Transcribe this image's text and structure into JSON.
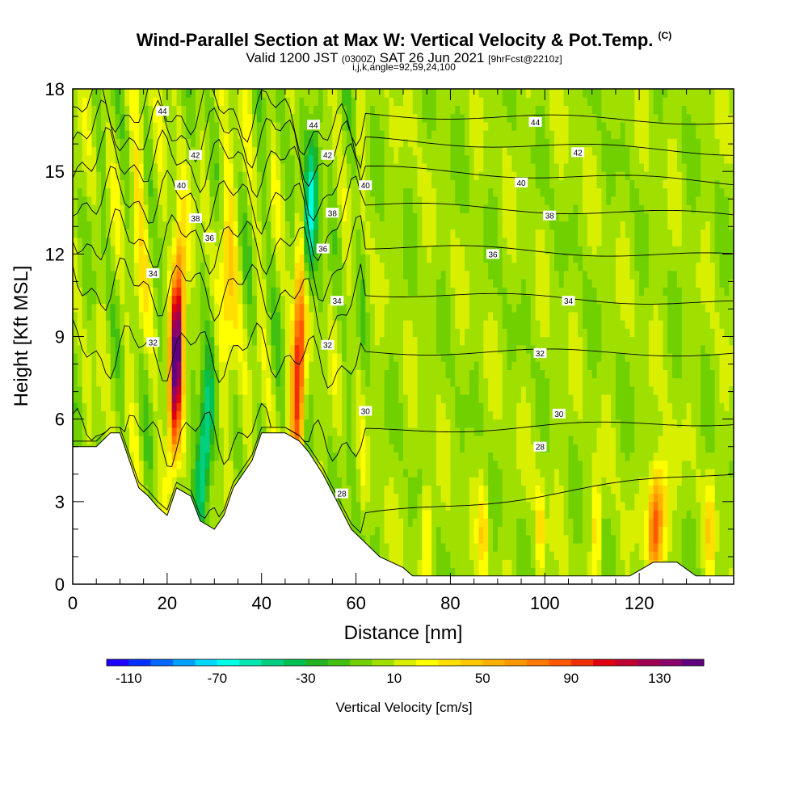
{
  "title": {
    "main": "Wind-Parallel Section at Max W: Vertical Velocity & Pot.Temp.",
    "mark": "(C)",
    "valid_prefix": "Valid 1200 JST",
    "valid_zulu": "(0300Z)",
    "valid_date": "SAT 26 Jun 2021",
    "forecast": "[9hrFcst@2210z]",
    "params": "i,j,k,angle=92,59,24,100"
  },
  "chart_data": {
    "type": "heatmap",
    "xlabel": "Distance [nm]",
    "ylabel": "Height [Kft MSL]",
    "xlim": [
      0,
      140
    ],
    "ylim": [
      0,
      18
    ],
    "x_ticks": [
      0,
      20,
      40,
      60,
      80,
      100,
      120
    ],
    "y_ticks": [
      0,
      3,
      6,
      9,
      12,
      15,
      18
    ],
    "colorbar": {
      "label": "Vertical Velocity [cm/s]",
      "range": [
        -120,
        150
      ],
      "step": 10,
      "tick_values": [
        -110,
        -70,
        -30,
        10,
        50,
        90,
        130
      ],
      "tick_labels": [
        "-110",
        "-70",
        "-30",
        "10",
        "50",
        "90",
        "130"
      ],
      "colors": [
        "#1e00ff",
        "#0030ff",
        "#0068ff",
        "#00a0ff",
        "#00d8ff",
        "#00ffe8",
        "#00e8b0",
        "#00d080",
        "#00c050",
        "#22b222",
        "#40c010",
        "#70d000",
        "#a0e000",
        "#d8f000",
        "#ffff00",
        "#ffe000",
        "#ffc800",
        "#ffb000",
        "#ff9800",
        "#ff7800",
        "#ff5800",
        "#f03000",
        "#e00010",
        "#c00030",
        "#a00050",
        "#8c006c",
        "#600080"
      ]
    },
    "updrafts": [
      {
        "x": 22,
        "peak": 140
      },
      {
        "x": 48,
        "peak": 115
      },
      {
        "x": 124,
        "peak": 70
      }
    ],
    "downdrafts": [
      {
        "x": 28,
        "min": -70
      },
      {
        "x": 50,
        "min": -75
      }
    ],
    "terrain_profile": [
      [
        0,
        5
      ],
      [
        5,
        5
      ],
      [
        8,
        5.5
      ],
      [
        10,
        5.5
      ],
      [
        12,
        4.5
      ],
      [
        14,
        3.5
      ],
      [
        16,
        3.2
      ],
      [
        18,
        2.8
      ],
      [
        20,
        2.5
      ],
      [
        22,
        3.5
      ],
      [
        25,
        3.2
      ],
      [
        27,
        2.3
      ],
      [
        30,
        2.0
      ],
      [
        32,
        2.5
      ],
      [
        34,
        3.5
      ],
      [
        38,
        4.5
      ],
      [
        40,
        5.5
      ],
      [
        45,
        5.5
      ],
      [
        48,
        5.2
      ],
      [
        50,
        4.8
      ],
      [
        53,
        4.0
      ],
      [
        56,
        3.0
      ],
      [
        59,
        2.0
      ],
      [
        62,
        1.5
      ],
      [
        65,
        1.0
      ],
      [
        70,
        0.6
      ],
      [
        72,
        0.3
      ],
      [
        80,
        0.3
      ],
      [
        118,
        0.3
      ],
      [
        123,
        0.8
      ],
      [
        128,
        0.8
      ],
      [
        132,
        0.3
      ],
      [
        140,
        0.3
      ]
    ],
    "theta_contours": [
      {
        "label": "28",
        "left": 1.2,
        "right": 4.1,
        "label_x": 99,
        "label_y": 5.0
      },
      {
        "label": "30",
        "left": 5.3,
        "right": 5.9,
        "label_x": 103,
        "label_y": 6.2
      },
      {
        "label": "32",
        "left": 8.5,
        "right": 8.4,
        "label_x": 99,
        "label_y": 8.4
      },
      {
        "label": "34",
        "left": 10.9,
        "right": 10.2,
        "label_x": 105,
        "label_y": 10.3
      },
      {
        "label": "36",
        "left": 12.6,
        "right": 11.9,
        "label_x": 89,
        "label_y": 12.0
      },
      {
        "label": "38",
        "left": 14.1,
        "right": 13.4,
        "label_x": 101,
        "label_y": 13.4
      },
      {
        "label": "40",
        "left": 15.5,
        "right": 14.6,
        "label_x": 95,
        "label_y": 14.6
      },
      {
        "label": "42",
        "left": 16.5,
        "right": 15.7,
        "label_x": 107,
        "label_y": 15.7
      },
      {
        "label": "44",
        "left": 17.3,
        "right": 16.8,
        "label_x": 98,
        "label_y": 16.8
      }
    ],
    "extra_labels": [
      {
        "label": "44",
        "x": 19,
        "y": 17.2
      },
      {
        "label": "42",
        "x": 26,
        "y": 15.6
      },
      {
        "label": "40",
        "x": 23,
        "y": 14.5
      },
      {
        "label": "38",
        "x": 26,
        "y": 13.3
      },
      {
        "label": "36",
        "x": 29,
        "y": 12.6
      },
      {
        "label": "34",
        "x": 17,
        "y": 11.3
      },
      {
        "label": "32",
        "x": 17,
        "y": 8.8
      },
      {
        "label": "44",
        "x": 51,
        "y": 16.7
      },
      {
        "label": "42",
        "x": 54,
        "y": 15.6
      },
      {
        "label": "40",
        "x": 62,
        "y": 14.5
      },
      {
        "label": "38",
        "x": 55,
        "y": 13.5
      },
      {
        "label": "36",
        "x": 53,
        "y": 12.2
      },
      {
        "label": "34",
        "x": 56,
        "y": 10.3
      },
      {
        "label": "32",
        "x": 54,
        "y": 8.7
      },
      {
        "label": "30",
        "x": 62,
        "y": 6.3
      },
      {
        "label": "28",
        "x": 57,
        "y": 3.3
      }
    ]
  }
}
